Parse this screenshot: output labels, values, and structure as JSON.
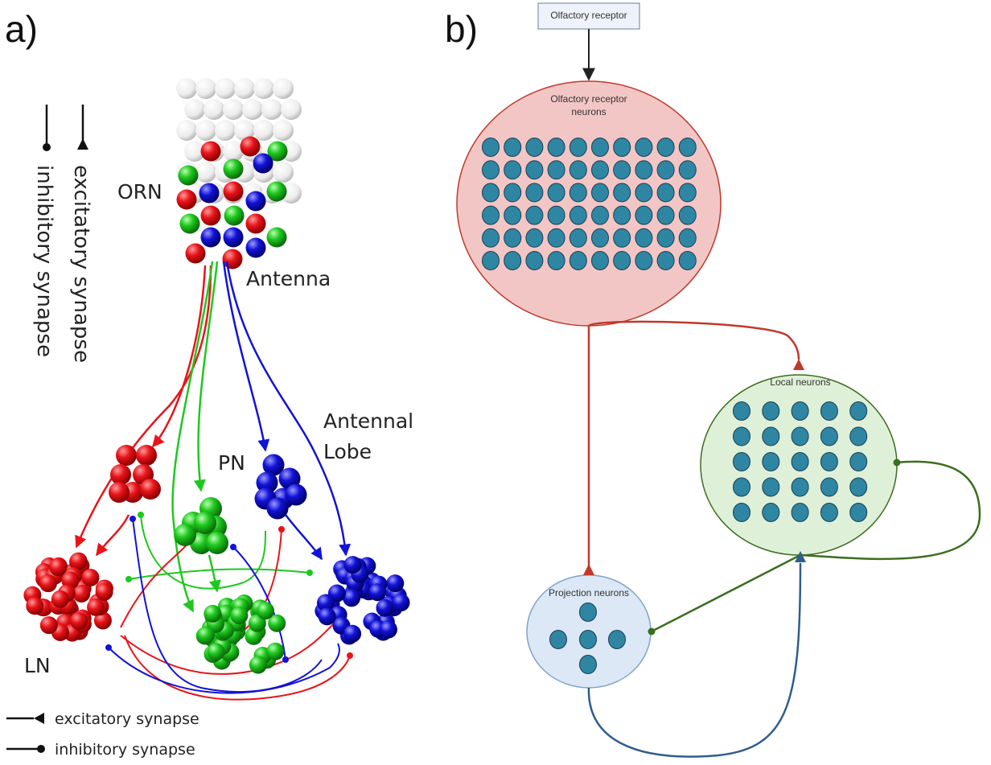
{
  "panel_a": {
    "label": "a)",
    "legend_vertical": {
      "inhibitory": "inhibitory synapse",
      "excitatory": "excitatory synapse"
    },
    "labels": {
      "orn": "ORN",
      "antenna": "Antenna",
      "antennal_lobe_1": "Antennal",
      "antennal_lobe_2": "Lobe",
      "pn": "PN",
      "ln": "LN"
    },
    "legend_bottom": {
      "excitatory": "excitatory synapse",
      "inhibitory": "inhibitory synapse"
    },
    "colors": {
      "red": "#e8141a",
      "green": "#1ec81e",
      "blue": "#1212d8"
    }
  },
  "panel_b": {
    "label": "b)",
    "receptor": "Olfactory receptor",
    "orn_title_1": "Olfactory receptor",
    "orn_title_2": "neurons",
    "local_title": "Local neurons",
    "projection_title": "Projection neurons",
    "colors": {
      "orn_fill": "#f3c6c6",
      "orn_edge": "#c0392b",
      "local_fill": "#dff0d8",
      "local_edge": "#3b6e1f",
      "proj_fill": "#dce8f5",
      "proj_edge": "#7fa3c8",
      "cell": "#2e86a3",
      "red_arrow": "#c0392b",
      "green_arrow": "#3b6e1f",
      "blue_arrow": "#2f5e8c"
    }
  }
}
